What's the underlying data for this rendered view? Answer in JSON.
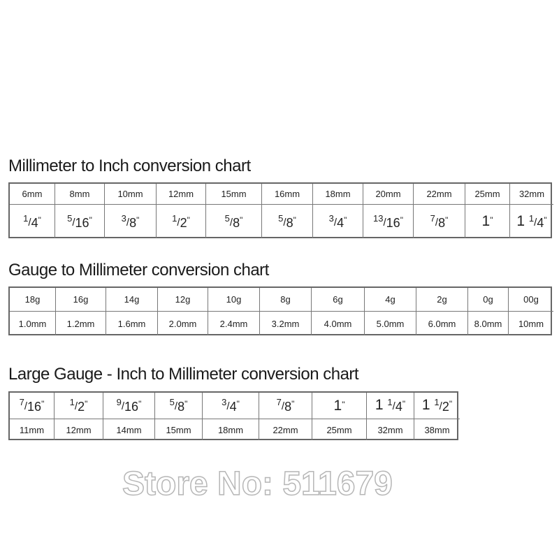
{
  "watermark": "Store No: 511679",
  "charts": [
    {
      "title": "Millimeter to Inch conversion chart",
      "rows": [
        [
          "6mm",
          "8mm",
          "10mm",
          "12mm",
          "15mm",
          "16mm",
          "18mm",
          "20mm",
          "22mm",
          "25mm",
          "32mm"
        ],
        [
          {
            "n": "1",
            "d": "4"
          },
          {
            "n": "5",
            "d": "16"
          },
          {
            "n": "3",
            "d": "8"
          },
          {
            "n": "1",
            "d": "2"
          },
          {
            "n": "5",
            "d": "8"
          },
          {
            "n": "5",
            "d": "8"
          },
          {
            "n": "3",
            "d": "4"
          },
          {
            "n": "13",
            "d": "16"
          },
          {
            "n": "7",
            "d": "8"
          },
          {
            "w": "1"
          },
          {
            "w": "1",
            "n": "1",
            "d": "4"
          }
        ]
      ]
    },
    {
      "title": "Gauge to Millimeter conversion chart",
      "rows": [
        [
          "18g",
          "16g",
          "14g",
          "12g",
          "10g",
          "8g",
          "6g",
          "4g",
          "2g",
          "0g",
          "00g"
        ],
        [
          "1.0mm",
          "1.2mm",
          "1.6mm",
          "2.0mm",
          "2.4mm",
          "3.2mm",
          "4.0mm",
          "5.0mm",
          "6.0mm",
          "8.0mm",
          "10mm"
        ]
      ]
    },
    {
      "title": "Large Gauge - Inch to Millimeter conversion chart",
      "rows": [
        [
          {
            "n": "7",
            "d": "16"
          },
          {
            "n": "1",
            "d": "2"
          },
          {
            "n": "9",
            "d": "16"
          },
          {
            "n": "5",
            "d": "8"
          },
          {
            "n": "3",
            "d": "4"
          },
          {
            "n": "7",
            "d": "8"
          },
          {
            "w": "1"
          },
          {
            "w": "1",
            "n": "1",
            "d": "4"
          },
          {
            "w": "1",
            "n": "1",
            "d": "2"
          }
        ],
        [
          "11mm",
          "12mm",
          "14mm",
          "15mm",
          "18mm",
          "22mm",
          "25mm",
          "32mm",
          "38mm"
        ]
      ]
    }
  ]
}
